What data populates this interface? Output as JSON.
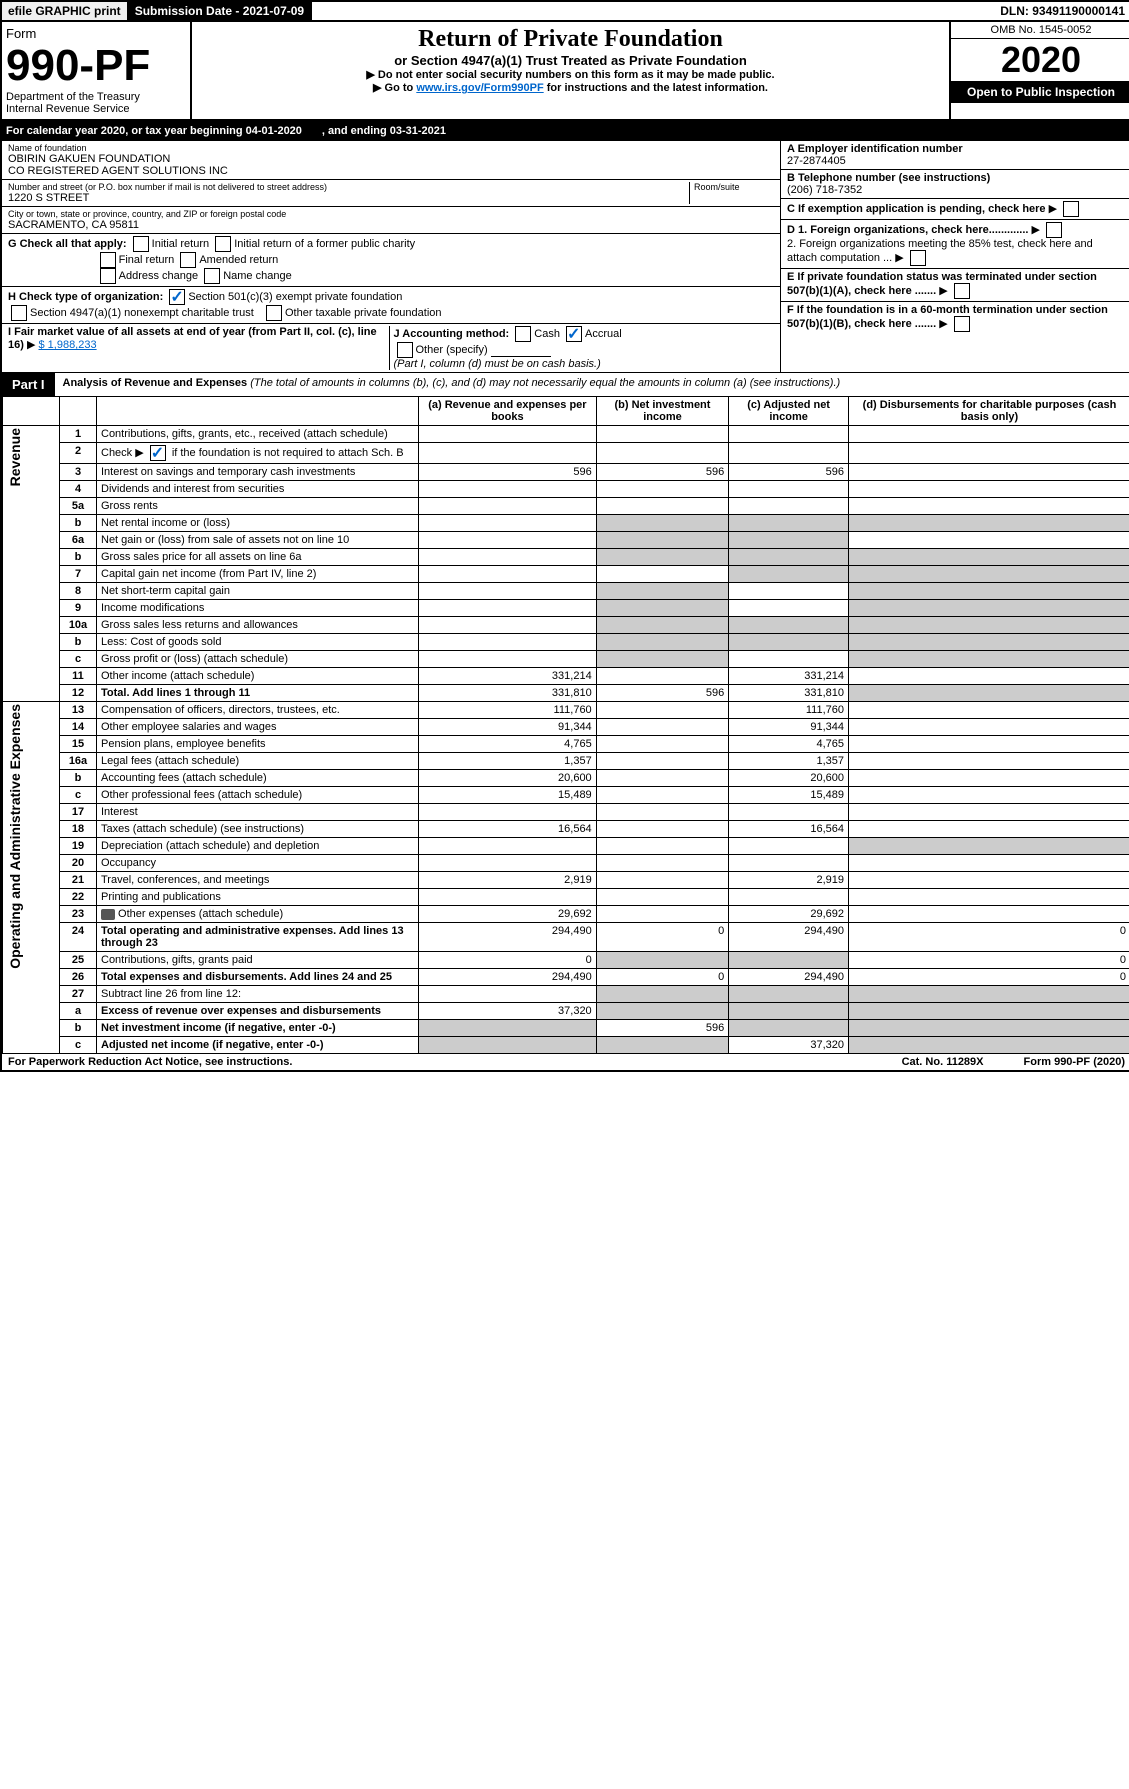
{
  "topbar": {
    "efile": "efile GRAPHIC print",
    "subdate": "Submission Date - 2021-07-09",
    "dln": "DLN: 93491190000141"
  },
  "header": {
    "formno": "Form",
    "formbig": "990-PF",
    "dept": "Department of the Treasury\nInternal Revenue Service",
    "title": "Return of Private Foundation",
    "subtitle": "or Section 4947(a)(1) Trust Treated as Private Foundation",
    "notice1": "▶ Do not enter social security numbers on this form as it may be made public.",
    "notice2": "▶ Go to ",
    "noticelink": "www.irs.gov/Form990PF",
    "notice3": " for instructions and the latest information.",
    "omb": "OMB No. 1545-0052",
    "year": "2020",
    "opento": "Open to Public Inspection"
  },
  "calyear": {
    "text": "For calendar year 2020, or tax year beginning 04-01-2020",
    "ending": ", and ending 03-31-2021"
  },
  "info": {
    "name_label": "Name of foundation",
    "name": "OBIRIN GAKUEN FOUNDATION\nCO REGISTERED AGENT SOLUTIONS INC",
    "addr_label": "Number and street (or P.O. box number if mail is not delivered to street address)",
    "room_label": "Room/suite",
    "addr": "1220 S STREET",
    "city_label": "City or town, state or province, country, and ZIP or foreign postal code",
    "city": "SACRAMENTO, CA  95811",
    "ein_label": "A Employer identification number",
    "ein": "27-2874405",
    "tel_label": "B Telephone number (see instructions)",
    "tel": "(206) 718-7352",
    "c": "C If exemption application is pending, check here",
    "d1": "D 1. Foreign organizations, check here.............",
    "d2": "2. Foreign organizations meeting the 85% test, check here and attach computation ...",
    "e": "E If private foundation status was terminated under section 507(b)(1)(A), check here .......",
    "f": "F If the foundation is in a 60-month termination under section 507(b)(1)(B), check here .......",
    "g": "G Check all that apply:",
    "g_init": "Initial return",
    "g_initpub": "Initial return of a former public charity",
    "g_final": "Final return",
    "g_amend": "Amended return",
    "g_addr": "Address change",
    "g_name": "Name change",
    "h": "H Check type of organization:",
    "h1": "Section 501(c)(3) exempt private foundation",
    "h2": "Section 4947(a)(1) nonexempt charitable trust",
    "h3": "Other taxable private foundation",
    "i": "I Fair market value of all assets at end of year (from Part II, col. (c), line 16)",
    "i_val": "$  1,988,233",
    "j": "J Accounting method:",
    "j_cash": "Cash",
    "j_accr": "Accrual",
    "j_other": "Other (specify)",
    "j_note": "(Part I, column (d) must be on cash basis.)"
  },
  "part1": {
    "tab": "Part I",
    "title": "Analysis of Revenue and Expenses",
    "title_note": "(The total of amounts in columns (b), (c), and (d) may not necessarily equal the amounts in column (a) (see instructions).)",
    "cols": {
      "a": "(a) Revenue and expenses per books",
      "b": "(b) Net investment income",
      "c": "(c) Adjusted net income",
      "d": "(d) Disbursements for charitable purposes (cash basis only)"
    }
  },
  "revenue_label": "Revenue",
  "oae_label": "Operating and Administrative Expenses",
  "rows": [
    {
      "n": "1",
      "t": "Contributions, gifts, grants, etc., received (attach schedule)"
    },
    {
      "n": "2",
      "t": "Check ▶",
      "t2": " if the foundation is not required to attach Sch. B",
      "chk": true
    },
    {
      "n": "3",
      "t": "Interest on savings and temporary cash investments",
      "a": "596",
      "b": "596",
      "c": "596"
    },
    {
      "n": "4",
      "t": "Dividends and interest from securities"
    },
    {
      "n": "5a",
      "t": "Gross rents"
    },
    {
      "n": "b",
      "t": "Net rental income or (loss)",
      "grayb": true,
      "grayc": true,
      "grayd": true
    },
    {
      "n": "6a",
      "t": "Net gain or (loss) from sale of assets not on line 10",
      "grayb": true,
      "grayc": true
    },
    {
      "n": "b",
      "t": "Gross sales price for all assets on line 6a",
      "grayb": true,
      "grayc": true,
      "grayd": true
    },
    {
      "n": "7",
      "t": "Capital gain net income (from Part IV, line 2)",
      "grayc": true,
      "grayd": true
    },
    {
      "n": "8",
      "t": "Net short-term capital gain",
      "grayb": true,
      "grayd": true
    },
    {
      "n": "9",
      "t": "Income modifications",
      "grayb": true,
      "grayd": true
    },
    {
      "n": "10a",
      "t": "Gross sales less returns and allowances",
      "grayb": true,
      "grayc": true,
      "grayd": true
    },
    {
      "n": "b",
      "t": "Less: Cost of goods sold",
      "grayb": true,
      "grayc": true,
      "grayd": true
    },
    {
      "n": "c",
      "t": "Gross profit or (loss) (attach schedule)",
      "grayb": true,
      "grayd": true
    },
    {
      "n": "11",
      "t": "Other income (attach schedule)",
      "a": "331,214",
      "c": "331,214"
    },
    {
      "n": "12",
      "t": "Total. Add lines 1 through 11",
      "bold": true,
      "a": "331,810",
      "b": "596",
      "c": "331,810",
      "grayd": true
    }
  ],
  "exprows": [
    {
      "n": "13",
      "t": "Compensation of officers, directors, trustees, etc.",
      "a": "111,760",
      "c": "111,760"
    },
    {
      "n": "14",
      "t": "Other employee salaries and wages",
      "a": "91,344",
      "c": "91,344"
    },
    {
      "n": "15",
      "t": "Pension plans, employee benefits",
      "a": "4,765",
      "c": "4,765"
    },
    {
      "n": "16a",
      "t": "Legal fees (attach schedule)",
      "a": "1,357",
      "c": "1,357"
    },
    {
      "n": "b",
      "t": "Accounting fees (attach schedule)",
      "a": "20,600",
      "c": "20,600"
    },
    {
      "n": "c",
      "t": "Other professional fees (attach schedule)",
      "a": "15,489",
      "c": "15,489"
    },
    {
      "n": "17",
      "t": "Interest"
    },
    {
      "n": "18",
      "t": "Taxes (attach schedule) (see instructions)",
      "a": "16,564",
      "c": "16,564"
    },
    {
      "n": "19",
      "t": "Depreciation (attach schedule) and depletion",
      "grayd": true
    },
    {
      "n": "20",
      "t": "Occupancy"
    },
    {
      "n": "21",
      "t": "Travel, conferences, and meetings",
      "a": "2,919",
      "c": "2,919"
    },
    {
      "n": "22",
      "t": "Printing and publications"
    },
    {
      "n": "23",
      "t": "Other expenses (attach schedule)",
      "a": "29,692",
      "c": "29,692",
      "icon": true
    },
    {
      "n": "24",
      "t": "Total operating and administrative expenses. Add lines 13 through 23",
      "bold": true,
      "a": "294,490",
      "b": "0",
      "c": "294,490",
      "d": "0"
    },
    {
      "n": "25",
      "t": "Contributions, gifts, grants paid",
      "a": "0",
      "grayb": true,
      "grayc": true,
      "d": "0"
    },
    {
      "n": "26",
      "t": "Total expenses and disbursements. Add lines 24 and 25",
      "bold": true,
      "a": "294,490",
      "b": "0",
      "c": "294,490",
      "d": "0"
    },
    {
      "n": "27",
      "t": "Subtract line 26 from line 12:",
      "grayb": true,
      "grayc": true,
      "grayd": true
    },
    {
      "n": "a",
      "t": "Excess of revenue over expenses and disbursements",
      "bold": true,
      "a": "37,320",
      "grayb": true,
      "grayc": true,
      "grayd": true
    },
    {
      "n": "b",
      "t": "Net investment income (if negative, enter -0-)",
      "bold": true,
      "b": "596",
      "graya": true,
      "grayc": true,
      "grayd": true
    },
    {
      "n": "c",
      "t": "Adjusted net income (if negative, enter -0-)",
      "bold": true,
      "c": "37,320",
      "graya": true,
      "grayb": true,
      "grayd": true
    }
  ],
  "footer": {
    "pra": "For Paperwork Reduction Act Notice, see instructions.",
    "cat": "Cat. No. 11289X",
    "form": "Form 990-PF (2020)"
  }
}
